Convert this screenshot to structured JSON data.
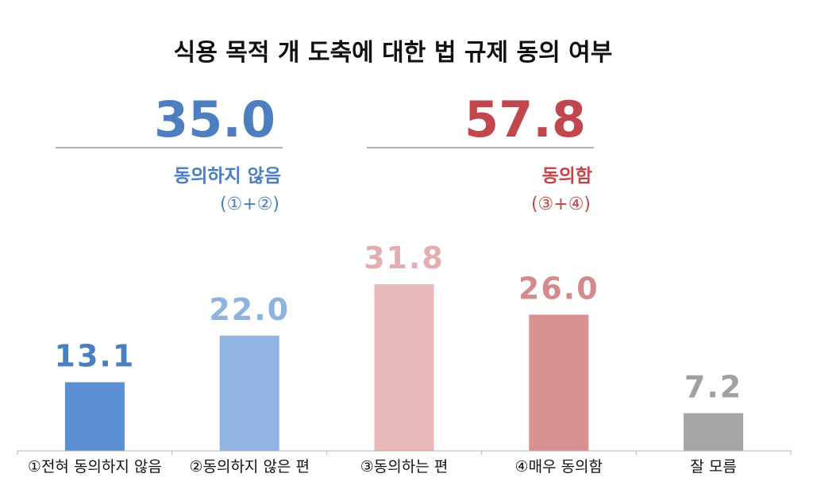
{
  "chart_data": {
    "type": "bar",
    "title": "식용 목적 개 도축에 대한 법 규제 동의 여부",
    "categories": [
      "①전혀 동의하지 않음",
      "②동의하지 않은 편",
      "③동의하는 편",
      "④매우 동의함",
      "잘 모름"
    ],
    "values": [
      13.1,
      22.0,
      31.8,
      26.0,
      7.2
    ],
    "value_labels": [
      "13.1",
      "22.0",
      "31.8",
      "26.0",
      "7.2"
    ],
    "bar_colors": [
      "#5b8fd4",
      "#91b4e2",
      "#e8b9b9",
      "#d99090",
      "#a6a6a6"
    ],
    "label_colors": [
      "#4a7fc4",
      "#8fb2df",
      "#e4aeb0",
      "#d28a8c",
      "#a0a0a0"
    ],
    "ylim": [
      0,
      40
    ],
    "grid": false,
    "summaries": [
      {
        "value": "35.0",
        "label": "동의하지 않음",
        "sub": "(①+②)",
        "color": "#4d7ebf"
      },
      {
        "value": "57.8",
        "label": "동의함",
        "sub": "(③+④)",
        "color": "#c0474d"
      }
    ]
  }
}
